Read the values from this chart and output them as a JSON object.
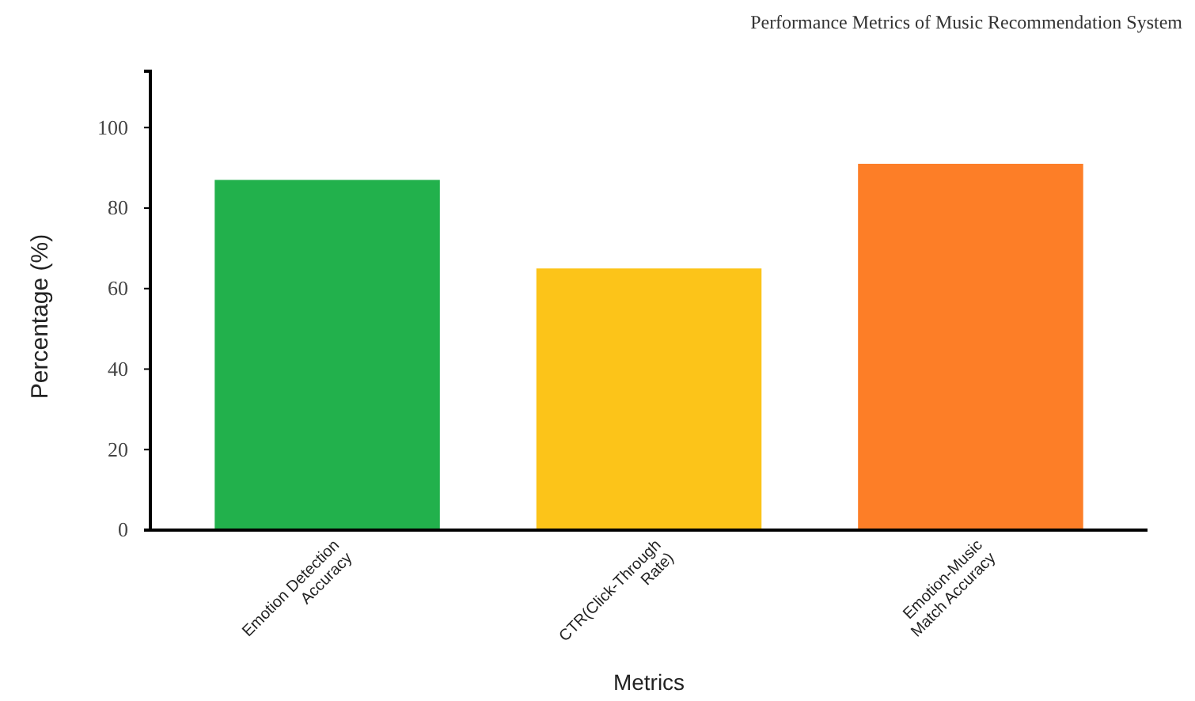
{
  "chart_data": {
    "type": "bar",
    "title": "Performance Metrics of Music Recommendation System",
    "xlabel": "Metrics",
    "ylabel": "Percentage (%)",
    "categories": [
      "Emotion Detection Accuracy",
      "CTR(Click-Through Rate)",
      "Emotion-Music Match Accuracy"
    ],
    "values": [
      87,
      65,
      91
    ],
    "colors": [
      "#22b14c",
      "#fcc419",
      "#fd7e27"
    ],
    "ylim": [
      0,
      114
    ],
    "yticks": [
      0,
      20,
      40,
      60,
      80,
      100
    ],
    "grid": false
  }
}
